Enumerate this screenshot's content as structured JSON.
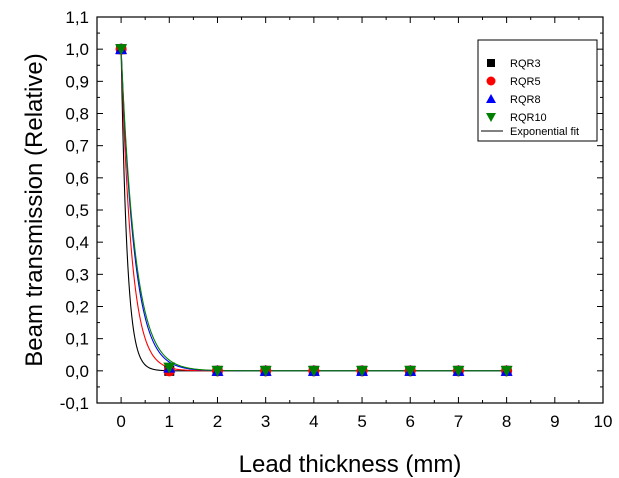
{
  "chart_data": {
    "type": "scatter",
    "title": "",
    "xlabel": "Lead thickness (mm)",
    "ylabel": "Beam transmission (Relative)",
    "xlim": [
      -0.5,
      10
    ],
    "ylim": [
      -0.1,
      1.1
    ],
    "x_ticks": [
      "0",
      "1",
      "2",
      "3",
      "4",
      "5",
      "6",
      "7",
      "8",
      "9",
      "10"
    ],
    "y_ticks": [
      "-0,1",
      "0,0",
      "0,1",
      "0,2",
      "0,3",
      "0,4",
      "0,5",
      "0,6",
      "0,7",
      "0,8",
      "0,9",
      "1,0",
      "1,1"
    ],
    "grid": false,
    "legend_position": "top-right",
    "series": [
      {
        "name": "RQR3",
        "marker": "square",
        "color": "#000000",
        "x": [
          0,
          1,
          2,
          3,
          4,
          5,
          6,
          7,
          8
        ],
        "y": [
          1.0,
          0.0,
          0.0,
          0.0,
          0.0,
          0.0,
          0.0,
          0.0,
          0.0
        ]
      },
      {
        "name": "RQR5",
        "marker": "circle",
        "color": "#ff0000",
        "x": [
          0,
          1,
          2,
          3,
          4,
          5,
          6,
          7,
          8
        ],
        "y": [
          1.0,
          0.0,
          0.0,
          0.0,
          0.0,
          0.0,
          0.0,
          0.0,
          0.0
        ]
      },
      {
        "name": "RQR8",
        "marker": "triangle-up",
        "color": "#0000ff",
        "x": [
          0,
          1,
          2,
          3,
          4,
          5,
          6,
          7,
          8
        ],
        "y": [
          1.0,
          0.01,
          0.0,
          0.0,
          0.0,
          0.0,
          0.0,
          0.0,
          0.0
        ]
      },
      {
        "name": "RQR10",
        "marker": "triangle-down",
        "color": "#008000",
        "x": [
          0,
          1,
          2,
          3,
          4,
          5,
          6,
          7,
          8
        ],
        "y": [
          1.0,
          0.01,
          0.0,
          0.0,
          0.0,
          0.0,
          0.0,
          0.0,
          0.0
        ]
      }
    ],
    "fit": {
      "name": "Exponential fit",
      "legend_color": "#000000",
      "curves": [
        {
          "color": "#000000",
          "decay_per_mm": 8.0
        },
        {
          "color": "#ff0000",
          "decay_per_mm": 4.6
        },
        {
          "color": "#0000ff",
          "decay_per_mm": 3.6
        },
        {
          "color": "#008000",
          "decay_per_mm": 3.4
        }
      ]
    }
  }
}
